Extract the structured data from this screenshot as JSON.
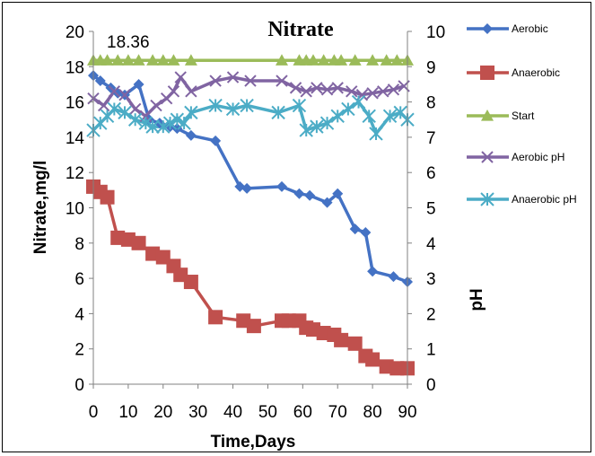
{
  "chart_data": {
    "type": "line",
    "title": "Nitrate",
    "xlabel": "Time,Days",
    "ylabel": "Nitrate,mg/l",
    "y2label": "pH",
    "xlim": [
      0,
      90
    ],
    "ylim": [
      0,
      20
    ],
    "y2lim": [
      0,
      10
    ],
    "x_ticks": [
      "0",
      "10",
      "20",
      "30",
      "40",
      "50",
      "60",
      "70",
      "80",
      "90"
    ],
    "y_ticks": [
      "0",
      "2",
      "4",
      "6",
      "8",
      "10",
      "12",
      "14",
      "16",
      "18",
      "20"
    ],
    "y2_ticks": [
      "0",
      "1",
      "2",
      "3",
      "4",
      "5",
      "6",
      "7",
      "8",
      "9",
      "10"
    ],
    "grid": false,
    "legend_position": "right",
    "annotations": [
      "18.36"
    ],
    "series": [
      {
        "name": "Aerobic",
        "axis": "left",
        "color": "#4472c4",
        "marker": "diamond",
        "x": [
          0,
          2,
          5,
          7,
          9,
          13,
          16,
          19,
          22,
          24,
          28,
          35,
          42,
          44,
          54,
          59,
          62,
          67,
          70,
          75,
          78,
          80,
          86,
          90
        ],
        "y": [
          17.5,
          17.2,
          16.8,
          16.5,
          16.4,
          17.0,
          15.0,
          14.8,
          14.6,
          14.5,
          14.1,
          13.8,
          11.2,
          11.1,
          11.2,
          10.8,
          10.7,
          10.3,
          10.8,
          8.8,
          8.6,
          6.4,
          6.1,
          5.8
        ]
      },
      {
        "name": "Anaerobic",
        "axis": "left",
        "color": "#c0504d",
        "marker": "square",
        "x": [
          0,
          2,
          4,
          7,
          10,
          13,
          17,
          20,
          23,
          25,
          28,
          35,
          43,
          46,
          54,
          56,
          59,
          61,
          63,
          66,
          69,
          71,
          75,
          78,
          80,
          84,
          87,
          90
        ],
        "y": [
          11.2,
          10.9,
          10.6,
          8.3,
          8.2,
          8.0,
          7.4,
          7.2,
          6.7,
          6.2,
          5.8,
          3.8,
          3.6,
          3.3,
          3.6,
          3.6,
          3.6,
          3.2,
          3.1,
          2.9,
          2.8,
          2.5,
          2.3,
          1.6,
          1.4,
          1.0,
          0.9,
          0.9
        ]
      },
      {
        "name": "Start",
        "axis": "left",
        "color": "#9bbb59",
        "marker": "triangle",
        "x": [
          0,
          2,
          4,
          7,
          10,
          13,
          17,
          20,
          23,
          28,
          54,
          59,
          61,
          63,
          66,
          69,
          71,
          75,
          80,
          84,
          87,
          90
        ],
        "y": [
          18.36,
          18.36,
          18.36,
          18.36,
          18.36,
          18.36,
          18.36,
          18.36,
          18.36,
          18.36,
          18.36,
          18.36,
          18.36,
          18.36,
          18.36,
          18.36,
          18.36,
          18.36,
          18.36,
          18.36,
          18.36,
          18.36
        ]
      },
      {
        "name": "Aerobic pH",
        "axis": "right",
        "color": "#8064a2",
        "marker": "x",
        "x": [
          0,
          3,
          6,
          9,
          12,
          15,
          18,
          21,
          23,
          25,
          28,
          35,
          40,
          45,
          54,
          58,
          61,
          64,
          67,
          70,
          74,
          77,
          80,
          83,
          86,
          89
        ],
        "y": [
          8.1,
          7.9,
          8.3,
          8.2,
          7.8,
          7.6,
          7.9,
          8.1,
          8.3,
          8.7,
          8.3,
          8.6,
          8.7,
          8.6,
          8.6,
          8.4,
          8.3,
          8.4,
          8.35,
          8.4,
          8.3,
          8.2,
          8.25,
          8.3,
          8.35,
          8.45
        ]
      },
      {
        "name": "Anaerobic pH",
        "axis": "right",
        "color": "#4bacc6",
        "marker": "asterisk",
        "x": [
          0,
          2,
          4,
          6,
          9,
          12,
          15,
          17,
          20,
          22,
          24,
          26,
          28,
          35,
          40,
          44,
          53,
          59,
          61,
          64,
          67,
          70,
          73,
          76,
          79,
          81,
          85,
          88,
          90
        ],
        "y": [
          7.2,
          7.4,
          7.6,
          7.8,
          7.7,
          7.5,
          7.4,
          7.3,
          7.3,
          7.4,
          7.5,
          7.4,
          7.7,
          7.9,
          7.8,
          7.9,
          7.7,
          7.9,
          7.2,
          7.3,
          7.4,
          7.6,
          7.8,
          8.0,
          7.6,
          7.1,
          7.6,
          7.7,
          7.5
        ]
      }
    ]
  }
}
